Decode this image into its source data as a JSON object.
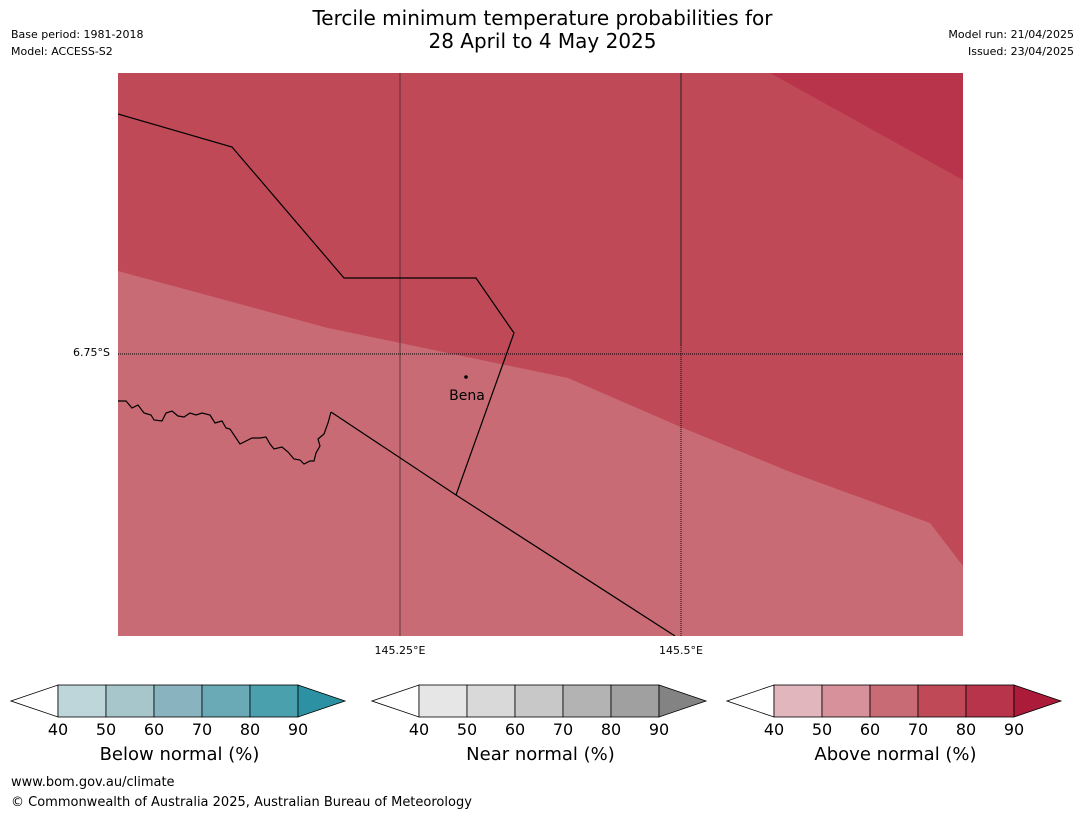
{
  "header": {
    "title_line1": "Tercile minimum temperature probabilities for",
    "title_line2": "28 April to 4 May 2025",
    "base_period": "Base period: 1981-2018",
    "model": "Model: ACCESS-S2",
    "model_run": "Model run: 21/04/2025",
    "issued": "Issued: 23/04/2025"
  },
  "map": {
    "place_name": "Bena",
    "lat_label": "6.75°S",
    "lon_labels": [
      "145.25°E",
      "145.5°E"
    ],
    "zone_colors": {
      "above_60_70": "#c96b75",
      "above_70_80": "#bf4957",
      "above_80_90": "#b8344a"
    }
  },
  "legends": [
    {
      "label": "Below normal (%)",
      "ticks": [
        "40",
        "50",
        "60",
        "70",
        "80",
        "90"
      ],
      "colors": [
        "#bed5da",
        "#a6c6cb",
        "#89b4bf",
        "#6aaab7",
        "#4ba0ae",
        "#2c91a2"
      ]
    },
    {
      "label": "Near normal (%)",
      "ticks": [
        "40",
        "50",
        "60",
        "70",
        "80",
        "90"
      ],
      "colors": [
        "#e6e6e6",
        "#d9d9d9",
        "#c8c8c8",
        "#b3b3b3",
        "#a0a0a0",
        "#838383"
      ]
    },
    {
      "label": "Above normal (%)",
      "ticks": [
        "40",
        "50",
        "60",
        "70",
        "80",
        "90"
      ],
      "colors": [
        "#e1b6bc",
        "#d6919a",
        "#c96b75",
        "#bf4957",
        "#b8344a",
        "#ac1c3a"
      ]
    }
  ],
  "footer": {
    "url": "www.bom.gov.au/climate",
    "copyright": "© Commonwealth of Australia 2025, Australian Bureau of Meteorology"
  }
}
